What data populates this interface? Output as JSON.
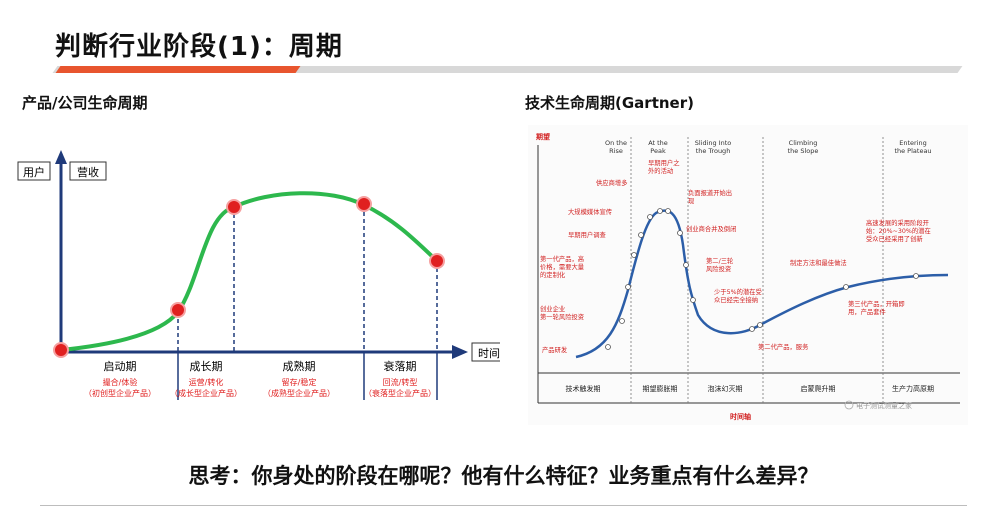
{
  "page": {
    "title": "判断行业阶段(1)：周期",
    "question": "思考：你身处的阶段在哪呢？他有什么特征？业务重点有什么差异？"
  },
  "left": {
    "title": "产品/公司生命周期",
    "y_label_1": "用户",
    "y_label_2": "营收",
    "x_label": "时间",
    "stages": [
      {
        "name": "启动期",
        "desc1": "撮合/体验",
        "desc2": "（初创型企业产品）"
      },
      {
        "name": "成长期",
        "desc1": "运营/转化",
        "desc2": "（成长型企业产品）"
      },
      {
        "name": "成熟期",
        "desc1": "留存/稳定",
        "desc2": "（成熟型企业产品）"
      },
      {
        "name": "衰落期",
        "desc1": "回流/转型",
        "desc2": "（衰落型企业产品）"
      }
    ],
    "colors": {
      "curve": "#2db84d",
      "axis": "#1f3a7a",
      "dot": "#e02020",
      "desc": "#e02020"
    }
  },
  "right": {
    "title": "技术生命周期(Gartner)",
    "y_label": "期望",
    "x_label": "时间轴",
    "phases_top": [
      {
        "l1": "On the",
        "l2": "Rise"
      },
      {
        "l1": "At the",
        "l2": "Peak"
      },
      {
        "l1": "Sliding Into",
        "l2": "the Trough"
      },
      {
        "l1": "Climbing",
        "l2": "the Slope"
      },
      {
        "l1": "Entering",
        "l2": "the Plateau"
      }
    ],
    "phases_bottom": [
      "技术触发期",
      "期望膨胀期",
      "泡沫幻灭期",
      "启蒙爬升期",
      "生产力高原期"
    ],
    "annotations": {
      "a1": "产品研发",
      "a2a": "创业企业",
      "a2b": "第一轮风险投资",
      "a3a": "第一代产品，高",
      "a3b": "价格，需要大量",
      "a3c": "的定制化",
      "a4": "早期用户调查",
      "a5": "大规模媒体宣传",
      "a6": "供应商增多",
      "a7a": "早期用户之",
      "a7b": "外的活动",
      "a8a": "负面报道开始出",
      "a8b": "现",
      "a9": "创业商合并及倒闭",
      "a10a": "第二/三轮",
      "a10b": "风险投资",
      "a11a": "少于5%的潜在受",
      "a11b": "众已经完全接纳",
      "a12": "第二代产品，服务",
      "a13": "制定方法和最佳做法",
      "a14a": "第三代产品，开箱即",
      "a14b": "用，产品套件",
      "a15a": "高速发展的采用阶段开",
      "a15b": "始：20%~30%的潜在",
      "a15c": "受众已经采用了创新"
    },
    "watermark": "电子测试测量之家",
    "colors": {
      "curve": "#2c5ea8",
      "text": "#d12020"
    }
  }
}
